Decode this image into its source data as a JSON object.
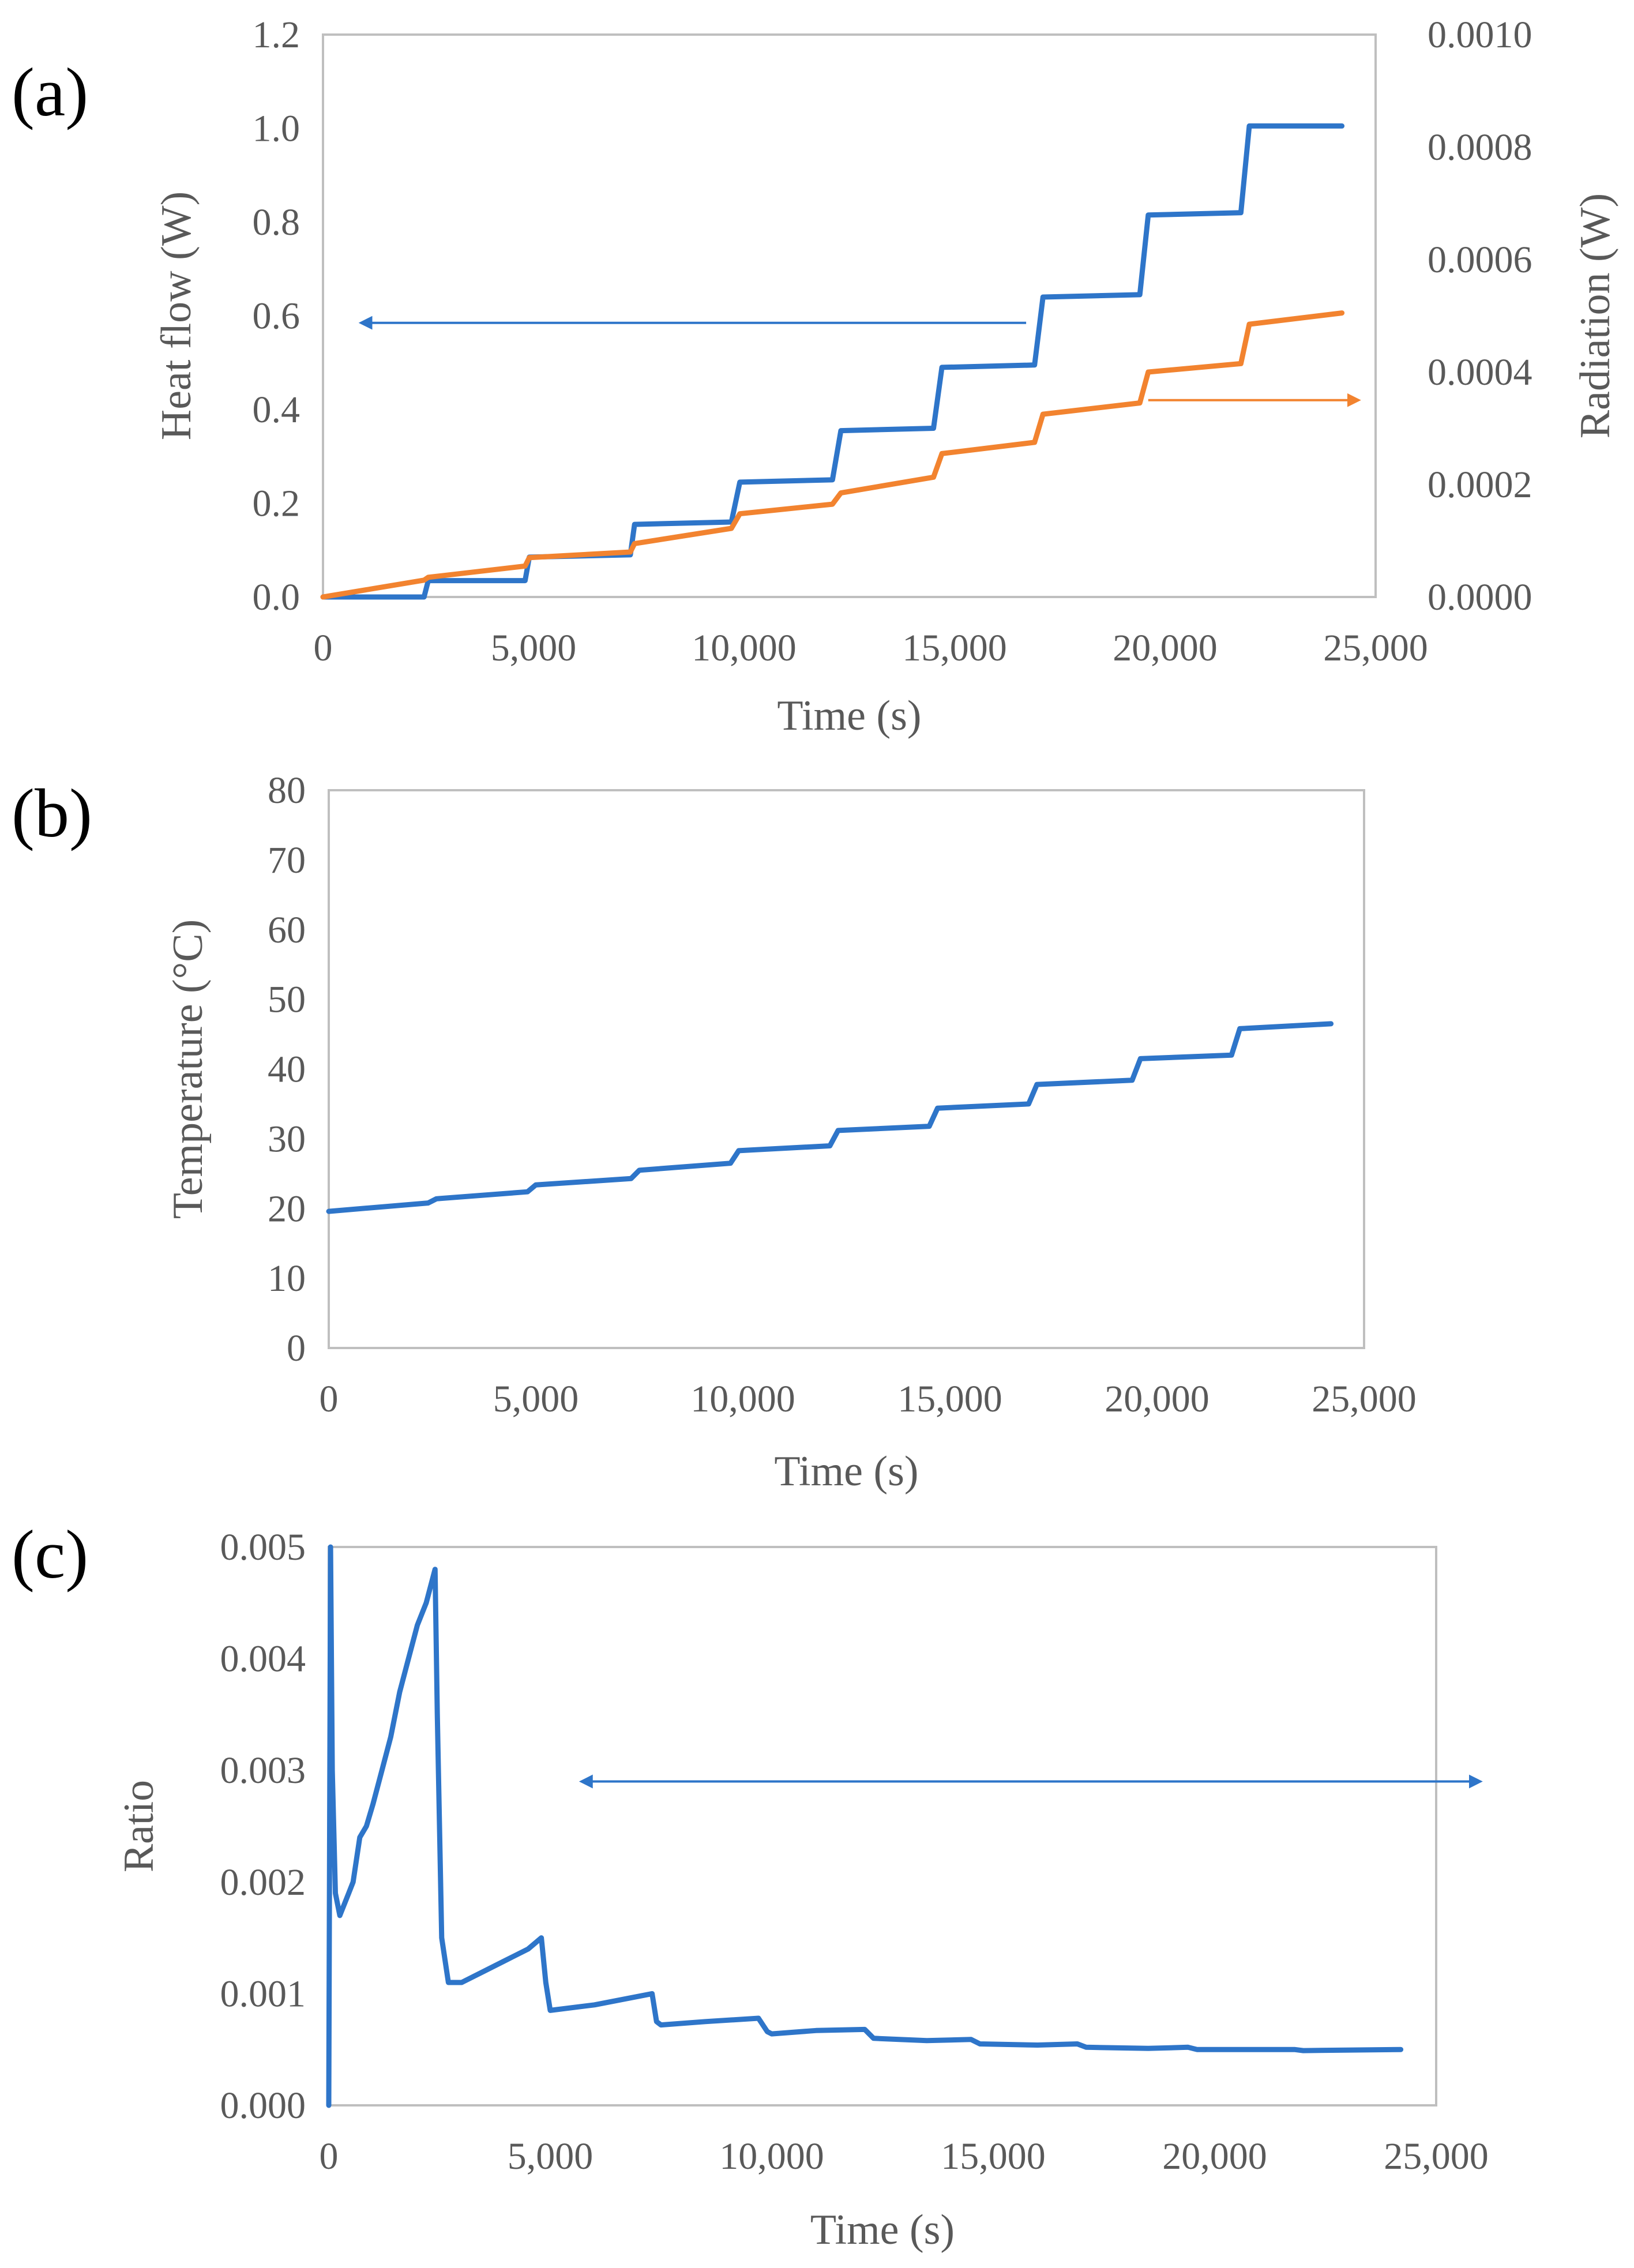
{
  "figure": {
    "panels": [
      "(a)",
      "(b)",
      "(c)"
    ]
  },
  "colors": {
    "blue": "#2e75c9",
    "orange": "#f2832f",
    "axis_text": "#595959",
    "frame": "#bfbfbf"
  },
  "chart_data": [
    {
      "panel": "(a)",
      "type": "line",
      "xlabel": "Time (s)",
      "ylabel": "Heat flow (W)",
      "y2label": "Radiation (W)",
      "xlim": [
        0,
        25000
      ],
      "ylim": [
        0,
        1.2
      ],
      "y2lim": [
        0,
        0.001
      ],
      "x_ticks": [
        "0",
        "5,000",
        "10,000",
        "15,000",
        "20,000",
        "25,000"
      ],
      "y_ticks": [
        "0.0",
        "0.2",
        "0.4",
        "0.6",
        "0.8",
        "1.0",
        "1.2"
      ],
      "y2_ticks": [
        "0.0000",
        "0.0002",
        "0.0004",
        "0.0006",
        "0.0008",
        "0.0010"
      ],
      "series": [
        {
          "name": "Heat flow",
          "axis": "left",
          "color": "#2e75c9",
          "x": [
            0,
            2400,
            2500,
            4800,
            4900,
            7300,
            7400,
            9700,
            9900,
            12100,
            12300,
            14500,
            14700,
            16900,
            17100,
            19400,
            19600,
            21800,
            22000,
            24200
          ],
          "y": [
            0.0,
            0.0,
            0.035,
            0.035,
            0.085,
            0.09,
            0.155,
            0.16,
            0.245,
            0.25,
            0.355,
            0.36,
            0.49,
            0.495,
            0.64,
            0.645,
            0.815,
            0.82,
            1.005,
            1.005
          ]
        },
        {
          "name": "Radiation",
          "axis": "right",
          "color": "#f2832f",
          "x": [
            0,
            2400,
            2500,
            4800,
            4900,
            7300,
            7400,
            9700,
            9900,
            12100,
            12300,
            14500,
            14700,
            16900,
            17100,
            19400,
            19600,
            21800,
            22000,
            24200
          ],
          "y": [
            0.0,
            3e-05,
            3.5e-05,
            5.5e-05,
            7e-05,
            8e-05,
            9.5e-05,
            0.000122,
            0.000148,
            0.000165,
            0.000185,
            0.000213,
            0.000255,
            0.000275,
            0.000325,
            0.000345,
            0.0004,
            0.000415,
            0.000485,
            0.000505
          ]
        }
      ],
      "annotations": [
        {
          "type": "arrow",
          "direction": "left",
          "color": "#2e75c9",
          "points_to": "left axis"
        },
        {
          "type": "arrow",
          "direction": "right",
          "color": "#f2832f",
          "points_to": "right axis"
        }
      ]
    },
    {
      "panel": "(b)",
      "type": "line",
      "xlabel": "Time (s)",
      "ylabel": "Temperature (°C)",
      "xlim": [
        0,
        25000
      ],
      "ylim": [
        0,
        80
      ],
      "x_ticks": [
        "0",
        "5,000",
        "10,000",
        "15,000",
        "20,000",
        "25,000"
      ],
      "y_ticks": [
        "0",
        "10",
        "20",
        "30",
        "40",
        "50",
        "60",
        "70",
        "80"
      ],
      "series": [
        {
          "name": "Temperature",
          "color": "#2e75c9",
          "x": [
            0,
            2400,
            2600,
            4800,
            5000,
            7300,
            7500,
            9700,
            9900,
            12100,
            12300,
            14500,
            14700,
            16900,
            17100,
            19400,
            19600,
            21800,
            22000,
            24200
          ],
          "y": [
            19.6,
            20.8,
            21.4,
            22.4,
            23.4,
            24.3,
            25.5,
            26.5,
            28.3,
            29.0,
            31.2,
            31.8,
            34.4,
            35.0,
            37.8,
            38.4,
            41.5,
            42.0,
            45.8,
            46.5
          ]
        }
      ]
    },
    {
      "panel": "(c)",
      "type": "line",
      "xlabel": "Time (s)",
      "ylabel": "Ratio",
      "xlim": [
        0,
        25000
      ],
      "ylim": [
        0,
        0.005
      ],
      "x_ticks": [
        "0",
        "5,000",
        "10,000",
        "15,000",
        "20,000",
        "25,000"
      ],
      "y_ticks": [
        "0.000",
        "0.001",
        "0.002",
        "0.003",
        "0.004",
        "0.005"
      ],
      "series": [
        {
          "name": "Ratio",
          "color": "#2e75c9",
          "x": [
            0,
            40,
            80,
            150,
            250,
            350,
            450,
            550,
            700,
            850,
            1000,
            1200,
            1400,
            1600,
            1800,
            2000,
            2200,
            2400,
            2450,
            2550,
            2700,
            3000,
            3500,
            4000,
            4500,
            4800,
            4900,
            5000,
            6000,
            7300,
            7400,
            7500,
            8500,
            9700,
            9900,
            10000,
            11000,
            12100,
            12300,
            13500,
            14500,
            14700,
            16000,
            16900,
            17100,
            18500,
            19400,
            19600,
            21000,
            21800,
            22000,
            24200
          ],
          "y": [
            0.0,
            0.005,
            0.003,
            0.0019,
            0.0017,
            0.0018,
            0.0019,
            0.002,
            0.0024,
            0.0025,
            0.0027,
            0.003,
            0.0033,
            0.0037,
            0.004,
            0.0043,
            0.0045,
            0.0048,
            0.0035,
            0.0015,
            0.0011,
            0.0011,
            0.0012,
            0.0013,
            0.0014,
            0.0015,
            0.0011,
            0.00085,
            0.0009,
            0.001,
            0.00075,
            0.00072,
            0.00075,
            0.00078,
            0.00066,
            0.00064,
            0.00067,
            0.00068,
            0.0006,
            0.00058,
            0.00059,
            0.00055,
            0.00054,
            0.00055,
            0.00052,
            0.00051,
            0.00052,
            0.0005,
            0.0005,
            0.0005,
            0.00049,
            0.0005
          ]
        }
      ],
      "annotations": [
        {
          "type": "double-arrow",
          "x_from": 5700,
          "x_to": 26000,
          "y": 0.0029,
          "color": "#2e75c9"
        }
      ]
    }
  ]
}
